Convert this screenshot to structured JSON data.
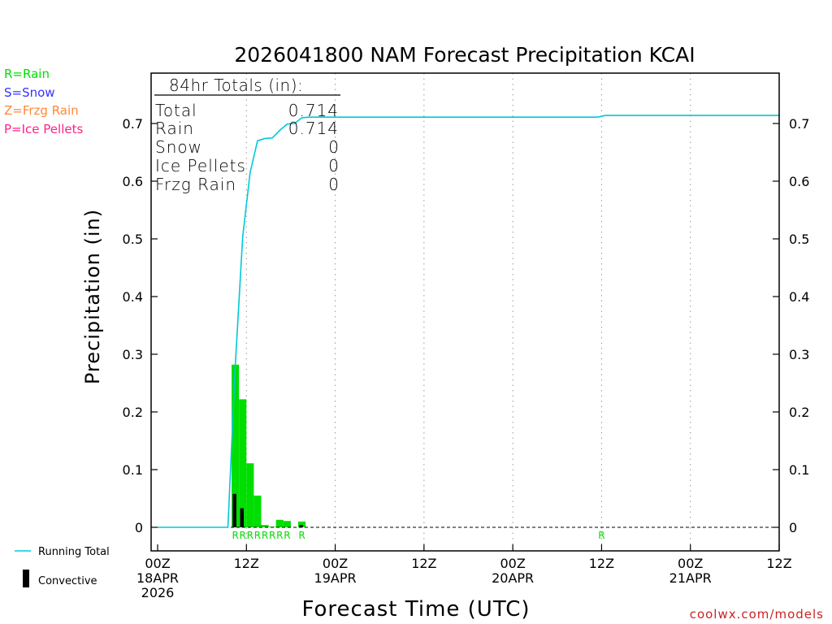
{
  "chart_data": {
    "type": "bar",
    "title": "2026041800 NAM Forecast Precipitation KCAI",
    "xlabel": "Forecast Time (UTC)",
    "ylabel": "Precipitation (in)",
    "ylim": [
      -0.04,
      0.78
    ],
    "xlim_hours": [
      0,
      84
    ],
    "y_ticks": [
      0,
      0.1,
      0.2,
      0.3,
      0.4,
      0.5,
      0.6,
      0.7
    ],
    "y_tick_labels": [
      "0",
      "0.1",
      "0.2",
      "0.3",
      "0.4",
      "0.5",
      "0.6",
      "0.7"
    ],
    "x_ticks": [
      {
        "hour": 0,
        "lines": [
          "00Z",
          "18APR",
          "2026"
        ]
      },
      {
        "hour": 12,
        "lines": [
          "12Z"
        ]
      },
      {
        "hour": 24,
        "lines": [
          "00Z",
          "19APR"
        ]
      },
      {
        "hour": 36,
        "lines": [
          "12Z"
        ]
      },
      {
        "hour": 48,
        "lines": [
          "00Z",
          "20APR"
        ]
      },
      {
        "hour": 60,
        "lines": [
          "12Z"
        ]
      },
      {
        "hour": 72,
        "lines": [
          "00Z",
          "21APR"
        ]
      },
      {
        "hour": 84,
        "lines": [
          "12Z"
        ]
      }
    ],
    "grid_hours": [
      12,
      24,
      36,
      48,
      60,
      72
    ],
    "bars": [
      {
        "start": 10,
        "end": 11,
        "value": 0.282,
        "convective": 0.058,
        "ptype": "R"
      },
      {
        "start": 11,
        "end": 12,
        "value": 0.222,
        "convective": 0.033,
        "ptype": "R"
      },
      {
        "start": 12,
        "end": 13,
        "value": 0.111,
        "convective": 0.0,
        "ptype": "R"
      },
      {
        "start": 13,
        "end": 14,
        "value": 0.055,
        "convective": 0.0,
        "ptype": "R"
      },
      {
        "start": 14,
        "end": 15,
        "value": 0.004,
        "convective": 0.0,
        "ptype": "R"
      },
      {
        "start": 15,
        "end": 16,
        "value": 0.001,
        "convective": 0.0,
        "ptype": "R"
      },
      {
        "start": 16,
        "end": 17,
        "value": 0.013,
        "convective": 0.0,
        "ptype": "R"
      },
      {
        "start": 17,
        "end": 18,
        "value": 0.011,
        "convective": 0.0,
        "ptype": "R"
      },
      {
        "start": 19,
        "end": 20,
        "value": 0.01,
        "convective": 0.004,
        "ptype": "R"
      }
    ],
    "ptype_labels": [
      {
        "hour": 10.5,
        "text": "R"
      },
      {
        "hour": 11.5,
        "text": "R"
      },
      {
        "hour": 12.5,
        "text": "R"
      },
      {
        "hour": 13.5,
        "text": "R"
      },
      {
        "hour": 14.5,
        "text": "R"
      },
      {
        "hour": 15.5,
        "text": "R"
      },
      {
        "hour": 16.5,
        "text": "R"
      },
      {
        "hour": 17.5,
        "text": "R"
      },
      {
        "hour": 19.5,
        "text": "R"
      },
      {
        "hour": 60,
        "text": "R"
      }
    ],
    "running_total": {
      "x": [
        0,
        9.5,
        10.5,
        11.5,
        12.5,
        13.5,
        14.5,
        15.5,
        16.5,
        17.5,
        18.5,
        19.5,
        20.5,
        24,
        36,
        48,
        59.5,
        60.5,
        72,
        84
      ],
      "y": [
        0,
        0,
        0.282,
        0.504,
        0.615,
        0.67,
        0.674,
        0.675,
        0.688,
        0.699,
        0.7,
        0.71,
        0.711,
        0.711,
        0.711,
        0.711,
        0.711,
        0.714,
        0.714,
        0.714
      ]
    },
    "colors": {
      "rain": "#00dd00",
      "snow": "#3333ff",
      "frzg_rain": "#ff8833",
      "ice_pellets": "#ff2288",
      "running_total": "#00c8d8",
      "convective": "#000000",
      "grid": "#999999",
      "credit": "#cc2222"
    }
  },
  "totals_box": {
    "heading": "84hr Totals (in):",
    "rows": [
      {
        "label": "Total",
        "value": "0.714"
      },
      {
        "label": "Rain",
        "value": "0.714"
      },
      {
        "label": "Snow",
        "value": "0"
      },
      {
        "label": "Ice Pellets",
        "value": "0"
      },
      {
        "label": "Frzg Rain",
        "value": "0"
      }
    ]
  },
  "ptype_legend": [
    {
      "text": "R=Rain",
      "color": "#00dd00"
    },
    {
      "text": "S=Snow",
      "color": "#3333ff"
    },
    {
      "text": "Z=Frzg Rain",
      "color": "#ff8833"
    },
    {
      "text": "P=Ice Pellets",
      "color": "#ff2288"
    }
  ],
  "series_legend": {
    "running_total": "Running Total",
    "convective": "Convective"
  },
  "credit": "coolwx.com/models"
}
